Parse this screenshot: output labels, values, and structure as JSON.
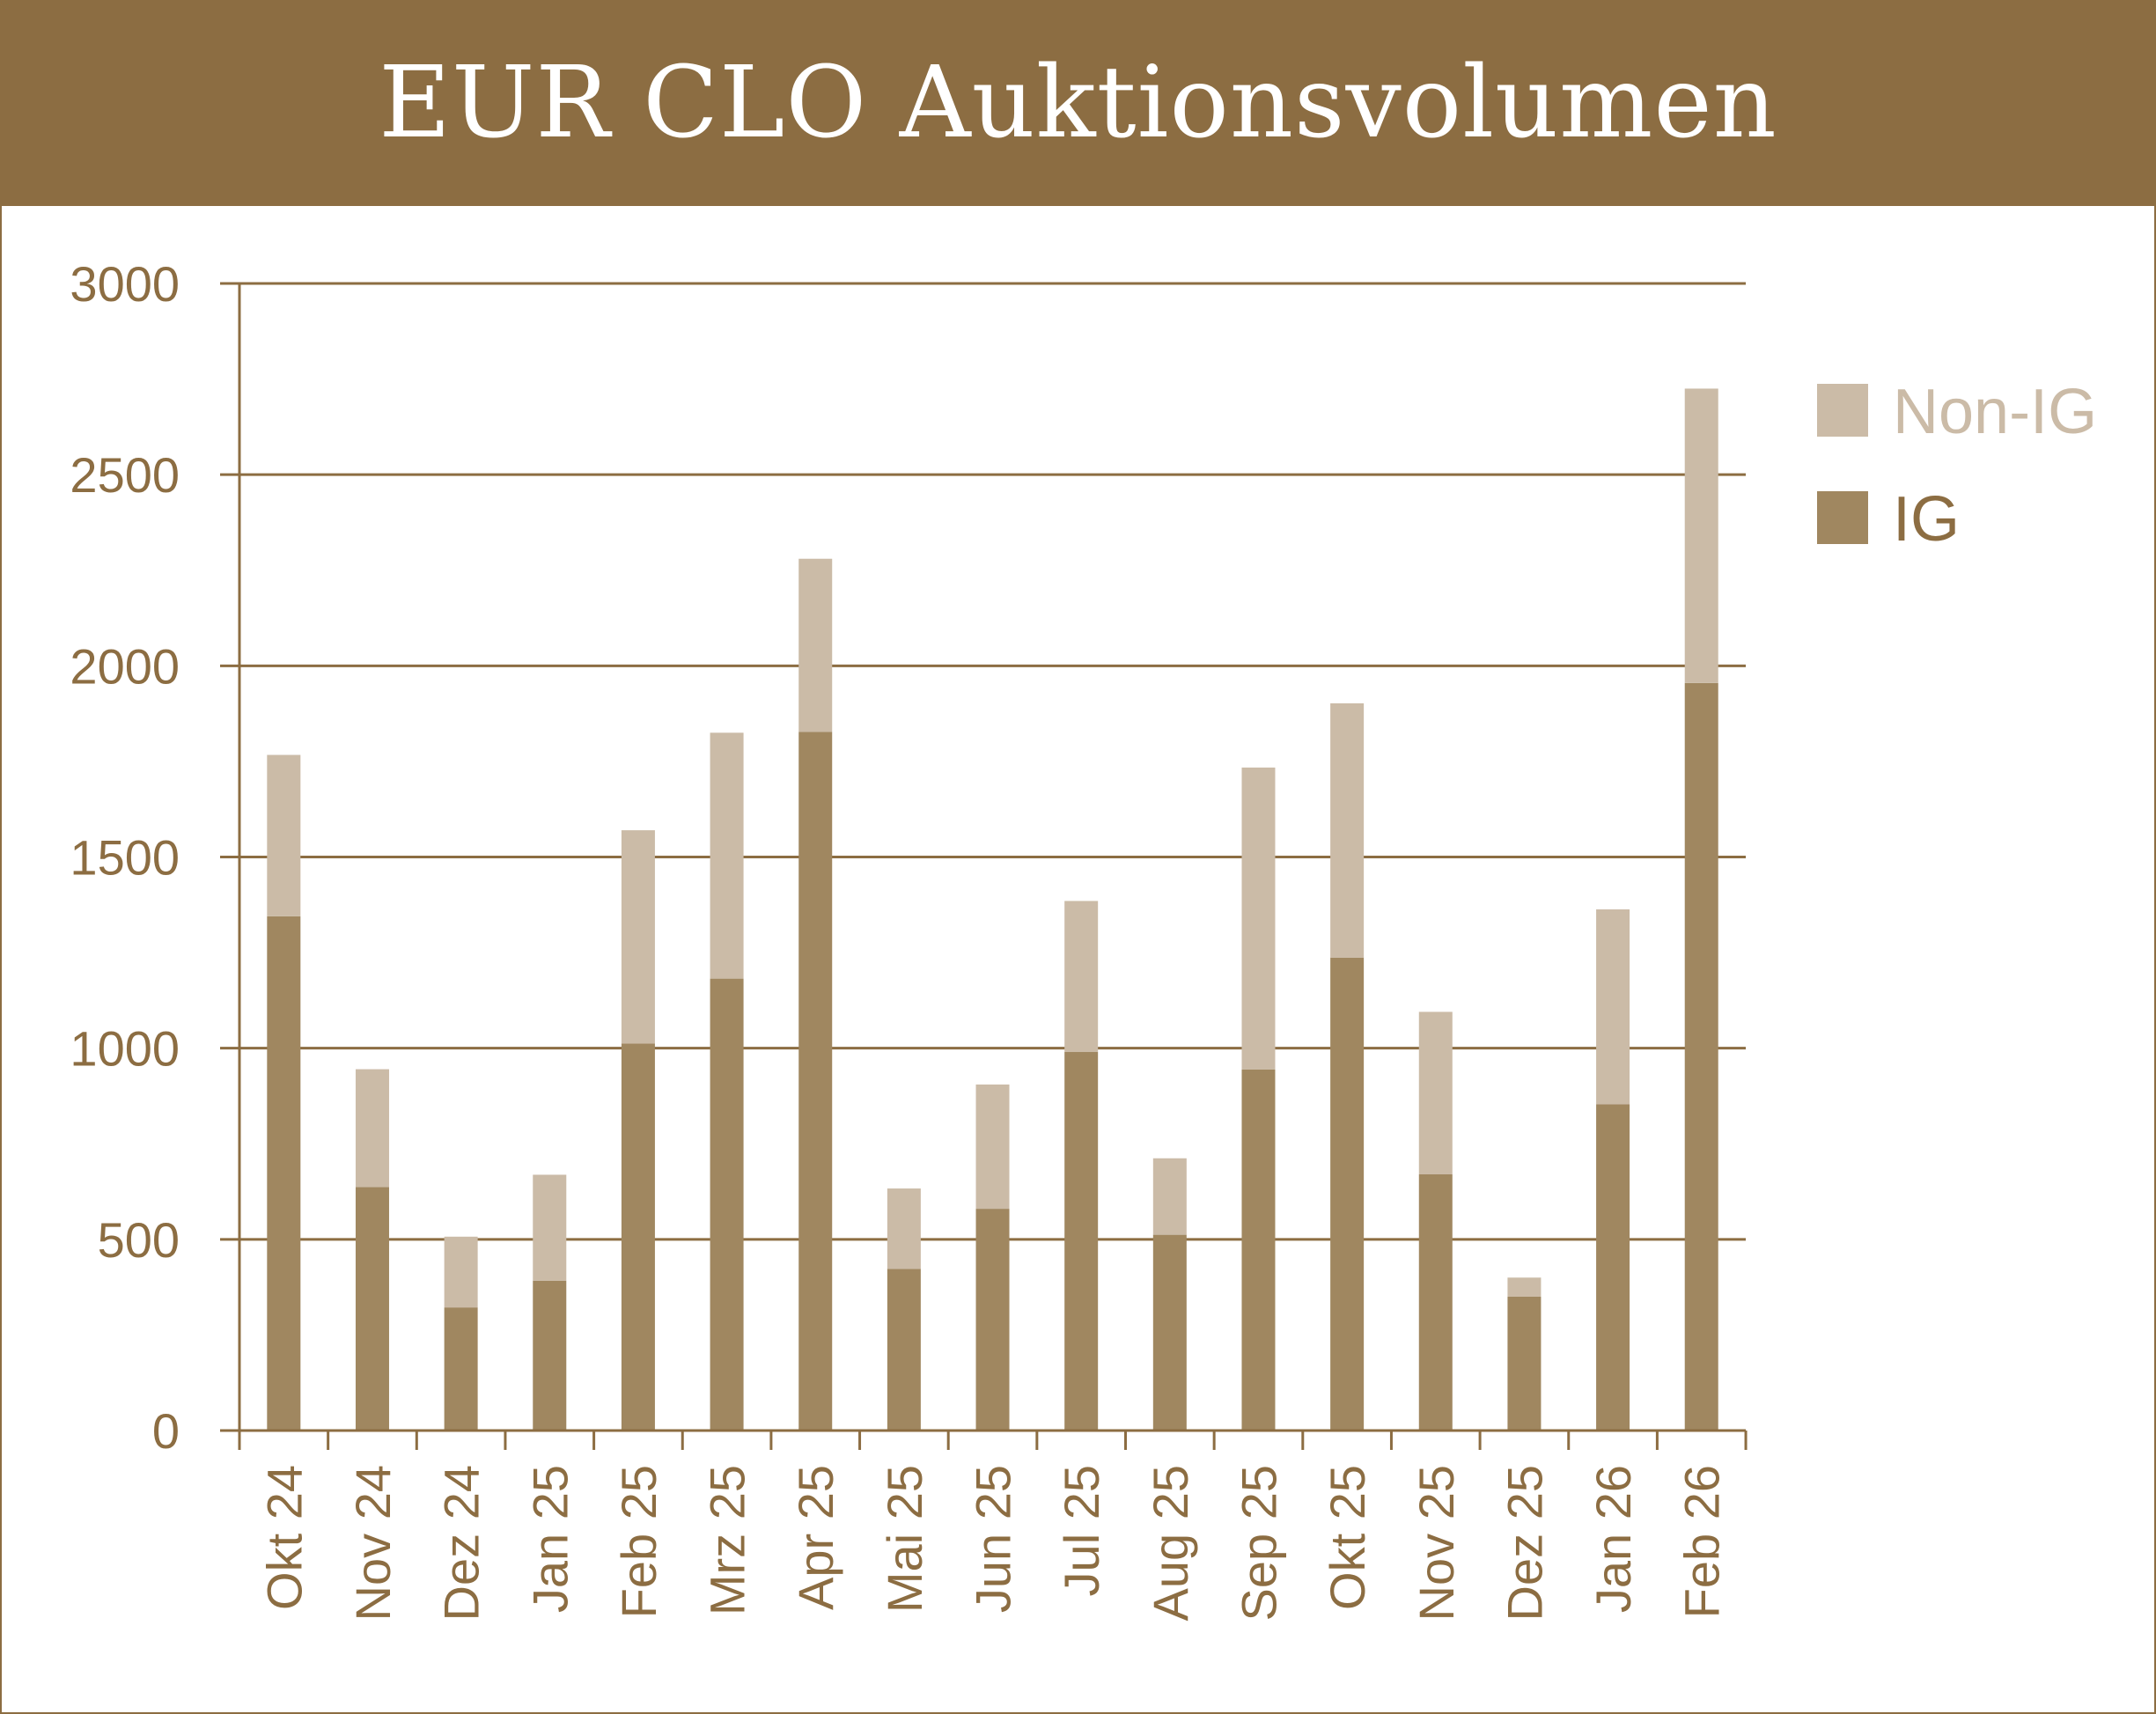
{
  "colors": {
    "header_bg": "#8c6d42",
    "ig": "#a08760",
    "non_ig": "#cbbba7",
    "axis": "#8c6d42",
    "text": "#8c6d42",
    "legend_non_ig_text": "#cbbba7"
  },
  "chart_data": {
    "type": "bar",
    "stacked": true,
    "title": "EUR CLO Auktionsvolumen",
    "xlabel": "",
    "ylabel": "",
    "ylim": [
      0,
      3000
    ],
    "yticks": [
      0,
      500,
      1000,
      1500,
      2000,
      2500,
      3000
    ],
    "grid": true,
    "legend_position": "right",
    "categories": [
      "Okt 24",
      "Nov 24",
      "Dez 24",
      "Jan 25",
      "Feb 25",
      "Mrz 25",
      "Apr 25",
      "Mai 25",
      "Jun 25",
      "Jul 25",
      "Aug 25",
      "Sep 25",
      "Okt 25",
      "Nov 25",
      "Dez 25",
      "Jan 26",
      "Feb 26"
    ],
    "series": [
      {
        "name": "IG",
        "values": [
          1345,
          637,
          322,
          392,
          1012,
          1182,
          1827,
          423,
          580,
          990,
          512,
          944,
          1237,
          670,
          350,
          853,
          1955
        ]
      },
      {
        "name": "Non-IG",
        "values": [
          422,
          308,
          185,
          277,
          558,
          643,
          453,
          210,
          325,
          395,
          200,
          790,
          665,
          425,
          50,
          510,
          770
        ]
      }
    ],
    "legend": [
      {
        "name": "Non-IG",
        "series_index": 1
      },
      {
        "name": "IG",
        "series_index": 0
      }
    ]
  }
}
